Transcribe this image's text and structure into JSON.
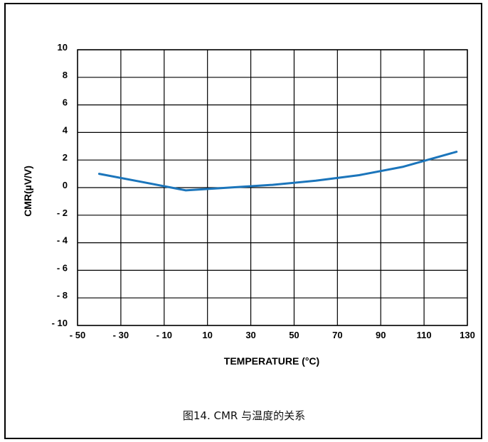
{
  "caption": "图14. CMR 与温度的关系",
  "chart_data": {
    "type": "line",
    "xlabel": "TEMPERATURE (°C)",
    "ylabel": "CMR(µV/V)",
    "xlim": [
      -50,
      130
    ],
    "ylim": [
      -10,
      10
    ],
    "x_ticks": [
      -50,
      -30,
      -10,
      10,
      30,
      50,
      70,
      90,
      110,
      130
    ],
    "x_tick_labels": [
      "- 50",
      "- 30",
      "- 10",
      "10",
      "30",
      "50",
      "70",
      "90",
      "110",
      "130"
    ],
    "y_ticks": [
      10,
      8,
      6,
      4,
      2,
      0,
      -2,
      -4,
      -6,
      -8,
      -10
    ],
    "y_tick_labels": [
      "10",
      "8",
      "6",
      "4",
      "2",
      "0",
      "- 2",
      "- 4",
      "- 6",
      "- 8",
      "- 10"
    ],
    "grid": true,
    "series": [
      {
        "color": "#1b75bb",
        "x": [
          -40,
          -20,
          0,
          20,
          40,
          60,
          80,
          100,
          125
        ],
        "y": [
          1.0,
          0.4,
          -0.2,
          0.0,
          0.2,
          0.5,
          0.9,
          1.5,
          2.6
        ]
      }
    ]
  }
}
